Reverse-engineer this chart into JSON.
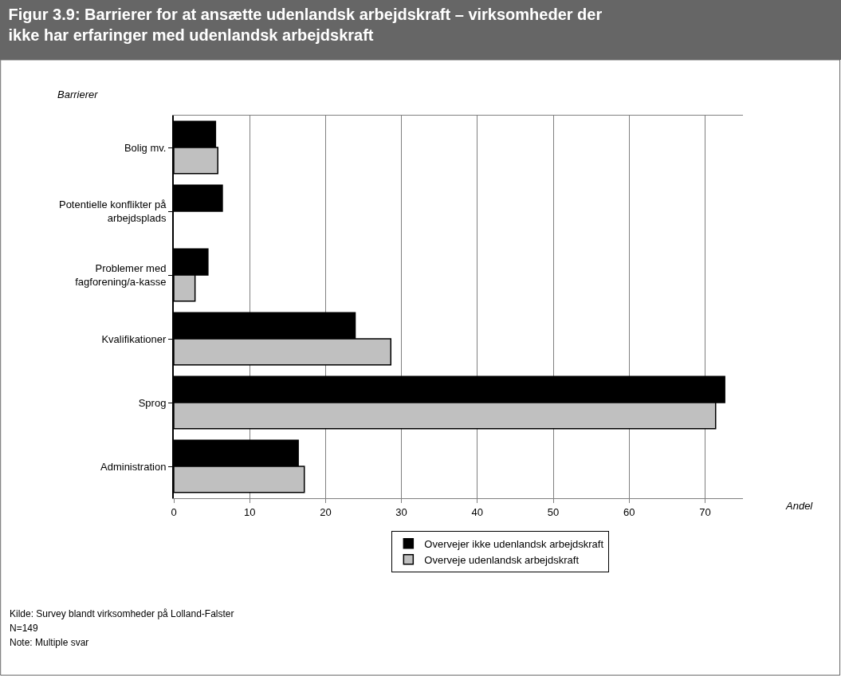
{
  "chart_data": {
    "type": "bar",
    "orientation": "horizontal",
    "title": "Figur 3.9: Barrierer for at ansætte udenlandsk arbejdskraft – virksomheder der ikke har erfaringer med udenlandsk arbejdskraft",
    "ylabel": "Barrierer",
    "xlabel": "Andel",
    "categories": [
      "Bolig mv.",
      "Potentielle konflikter på arbejdsplads",
      "Problemer med fagforening/a-kasse",
      "Kvalifikationer",
      "Sprog",
      "Administration"
    ],
    "series": [
      {
        "name": "Overvejer ikke udenlandsk arbejdskraft",
        "color": "#000000",
        "values": [
          5.5,
          6.4,
          4.5,
          23.9,
          72.6,
          16.4
        ]
      },
      {
        "name": "Overveje udenlandsk arbejdskraft",
        "color": "#c0c0c0",
        "values": [
          5.8,
          null,
          2.8,
          28.6,
          71.4,
          17.2
        ]
      }
    ],
    "xlim": [
      0,
      75
    ],
    "xticks": [
      0,
      10,
      20,
      30,
      40,
      50,
      60,
      70
    ],
    "grid": "x",
    "legend": "bottom",
    "annotations": [
      "Kilde: Survey blandt virksomheder på Lolland-Falster",
      "N=149",
      "Note: Multiple svar"
    ]
  }
}
